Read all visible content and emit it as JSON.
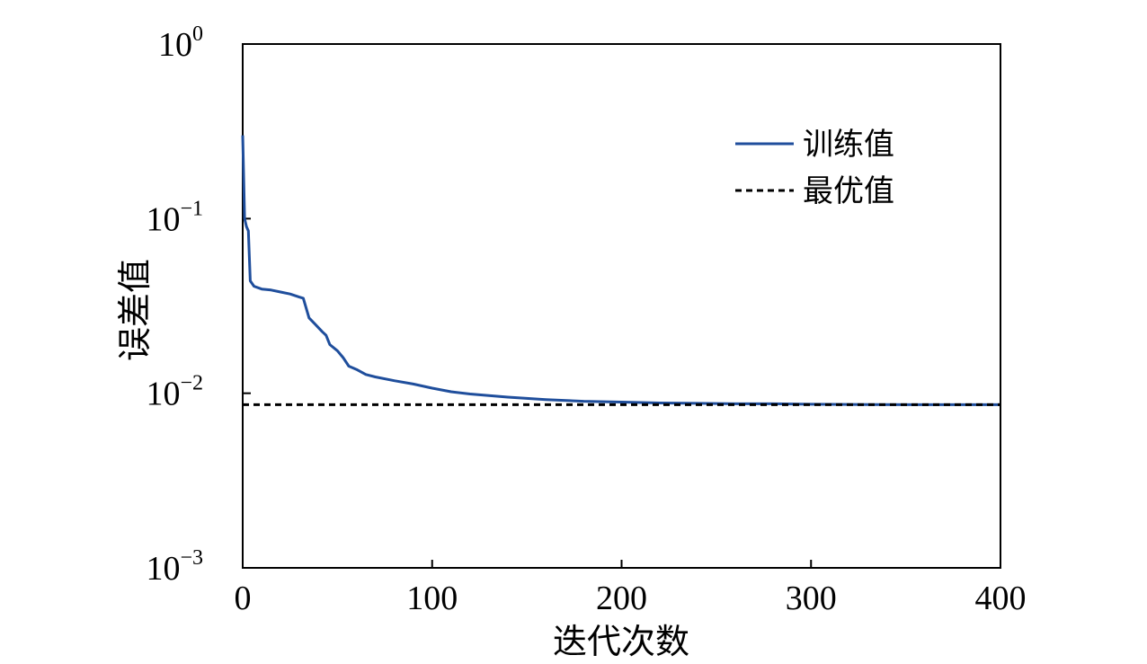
{
  "chart_data": {
    "type": "line",
    "title": "",
    "xlabel": "迭代次数",
    "ylabel": "误差值",
    "xlim": [
      0,
      400
    ],
    "ylim": [
      0.001,
      1
    ],
    "yscale": "log",
    "grid": false,
    "legend_position": "top-right",
    "x_ticks": [
      "0",
      "100",
      "200",
      "300",
      "400"
    ],
    "y_ticks": [
      {
        "base": "10",
        "exp": "0"
      },
      {
        "base": "10",
        "exp": "−1"
      },
      {
        "base": "10",
        "exp": "−2"
      },
      {
        "base": "10",
        "exp": "−3"
      }
    ],
    "series": [
      {
        "name": "训练值",
        "color": "#1f4e9c",
        "style": "solid",
        "x": [
          0,
          1,
          2,
          3,
          4,
          6,
          10,
          15,
          20,
          25,
          30,
          32,
          35,
          38,
          42,
          44,
          46,
          50,
          53,
          56,
          60,
          65,
          70,
          80,
          90,
          100,
          110,
          120,
          140,
          160,
          180,
          200,
          220,
          240,
          260,
          280,
          300,
          330,
          360,
          400
        ],
        "y": [
          0.3,
          0.1,
          0.09,
          0.085,
          0.044,
          0.041,
          0.0395,
          0.039,
          0.038,
          0.037,
          0.0355,
          0.035,
          0.027,
          0.025,
          0.0225,
          0.0215,
          0.019,
          0.0175,
          0.016,
          0.0143,
          0.0137,
          0.0128,
          0.0124,
          0.0118,
          0.0113,
          0.0107,
          0.0102,
          0.0099,
          0.0095,
          0.0092,
          0.009,
          0.0089,
          0.0088,
          0.00875,
          0.0087,
          0.0087,
          0.00865,
          0.00862,
          0.0086,
          0.0086
        ]
      },
      {
        "name": "最优值",
        "color": "#000000",
        "style": "dashed",
        "x": [
          0,
          400
        ],
        "y": [
          0.0086,
          0.0086
        ]
      }
    ]
  }
}
